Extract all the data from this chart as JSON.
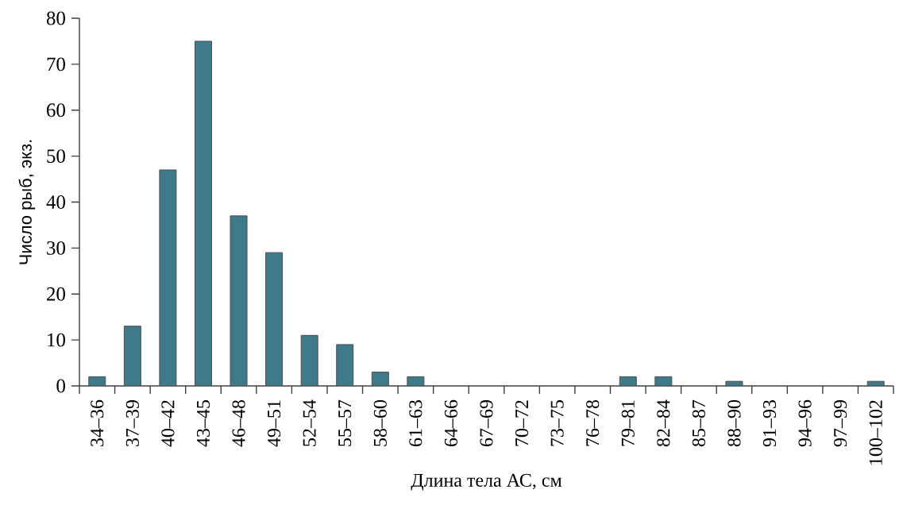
{
  "chart_data": {
    "type": "bar",
    "xlabel": "Длина тела АС, см",
    "ylabel": "Число рыб, экз.",
    "categories": [
      "34–36",
      "37–39",
      "40–42",
      "43–45",
      "46–48",
      "49–51",
      "52–54",
      "55–57",
      "58–60",
      "61–63",
      "64–66",
      "67–69",
      "70–72",
      "73–75",
      "76–78",
      "79–81",
      "82–84",
      "85–87",
      "88–90",
      "91–93",
      "94–96",
      "97–99",
      "100–102"
    ],
    "values": [
      2,
      13,
      47,
      75,
      37,
      29,
      11,
      9,
      3,
      2,
      0,
      0,
      0,
      0,
      0,
      2,
      2,
      0,
      1,
      0,
      0,
      0,
      1
    ],
    "color": "#3f7a8a",
    "ylim": [
      0,
      80
    ],
    "yticks": [
      0,
      10,
      20,
      30,
      40,
      50,
      60,
      70,
      80
    ]
  }
}
